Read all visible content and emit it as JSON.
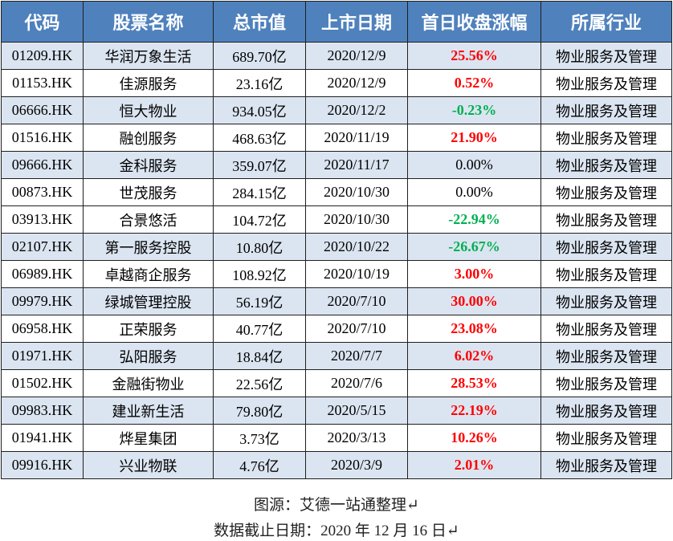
{
  "table": {
    "header": [
      "代码",
      "股票名称",
      "总市值",
      "上市日期",
      "首日收盘涨幅",
      "所属行业"
    ],
    "rows": [
      [
        "01209.HK",
        "华润万象生活",
        "689.70亿",
        "2020/12/9",
        "25.56%",
        "物业服务及管理"
      ],
      [
        "01153.HK",
        "佳源服务",
        "23.16亿",
        "2020/12/9",
        "0.52%",
        "物业服务及管理"
      ],
      [
        "06666.HK",
        "恒大物业",
        "934.05亿",
        "2020/12/2",
        "-0.23%",
        "物业服务及管理"
      ],
      [
        "01516.HK",
        "融创服务",
        "468.63亿",
        "2020/11/19",
        "21.90%",
        "物业服务及管理"
      ],
      [
        "09666.HK",
        "金科服务",
        "359.07亿",
        "2020/11/17",
        "0.00%",
        "物业服务及管理"
      ],
      [
        "00873.HK",
        "世茂服务",
        "284.15亿",
        "2020/10/30",
        "0.00%",
        "物业服务及管理"
      ],
      [
        "03913.HK",
        "合景悠活",
        "104.72亿",
        "2020/10/30",
        "-22.94%",
        "物业服务及管理"
      ],
      [
        "02107.HK",
        "第一服务控股",
        "10.80亿",
        "2020/10/22",
        "-26.67%",
        "物业服务及管理"
      ],
      [
        "06989.HK",
        "卓越商企服务",
        "108.92亿",
        "2020/10/19",
        "3.00%",
        "物业服务及管理"
      ],
      [
        "09979.HK",
        "绿城管理控股",
        "56.19亿",
        "2020/7/10",
        "30.00%",
        "物业服务及管理"
      ],
      [
        "06958.HK",
        "正荣服务",
        "40.77亿",
        "2020/7/10",
        "23.08%",
        "物业服务及管理"
      ],
      [
        "01971.HK",
        "弘阳服务",
        "18.84亿",
        "2020/7/7",
        "6.02%",
        "物业服务及管理"
      ],
      [
        "01502.HK",
        "金融街物业",
        "22.56亿",
        "2020/7/6",
        "28.53%",
        "物业服务及管理"
      ],
      [
        "09983.HK",
        "建业新生活",
        "79.80亿",
        "2020/5/15",
        "22.19%",
        "物业服务及管理"
      ],
      [
        "01941.HK",
        "烨星集团",
        "3.73亿",
        "2020/3/13",
        "10.26%",
        "物业服务及管理"
      ],
      [
        "09916.HK",
        "兴业物联",
        "4.76亿",
        "2020/3/9",
        "2.01%",
        "物业服务及管理"
      ]
    ]
  },
  "footer": {
    "source": "图源：艾德一站通整理↵",
    "cutoff": "数据截止日期：2020 年 12 月 16 日↵"
  }
}
